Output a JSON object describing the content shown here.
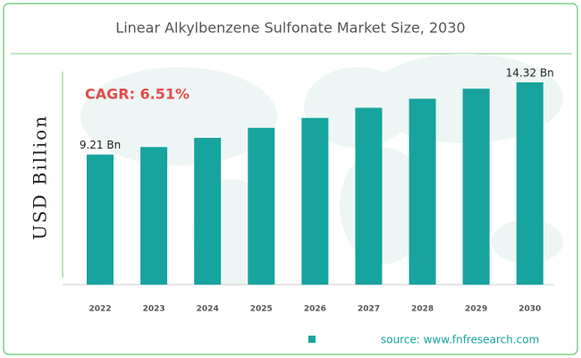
{
  "chart_data": {
    "type": "bar",
    "title": "Linear Alkylbenzene Sulfonate Market Size, 2030",
    "y_label": "USD Billion",
    "annotation": "CAGR: 6.51%",
    "source": "source: www.fnfresearch.com",
    "categories": [
      "2022",
      "2023",
      "2024",
      "2025",
      "2026",
      "2027",
      "2028",
      "2029",
      "2030"
    ],
    "values": [
      9.21,
      9.74,
      10.39,
      11.1,
      11.8,
      12.52,
      13.16,
      13.87,
      14.32
    ],
    "value_labels": [
      "9.21 Bn",
      null,
      null,
      null,
      null,
      null,
      null,
      null,
      "14.32 Bn"
    ],
    "color": "#17a39e"
  }
}
